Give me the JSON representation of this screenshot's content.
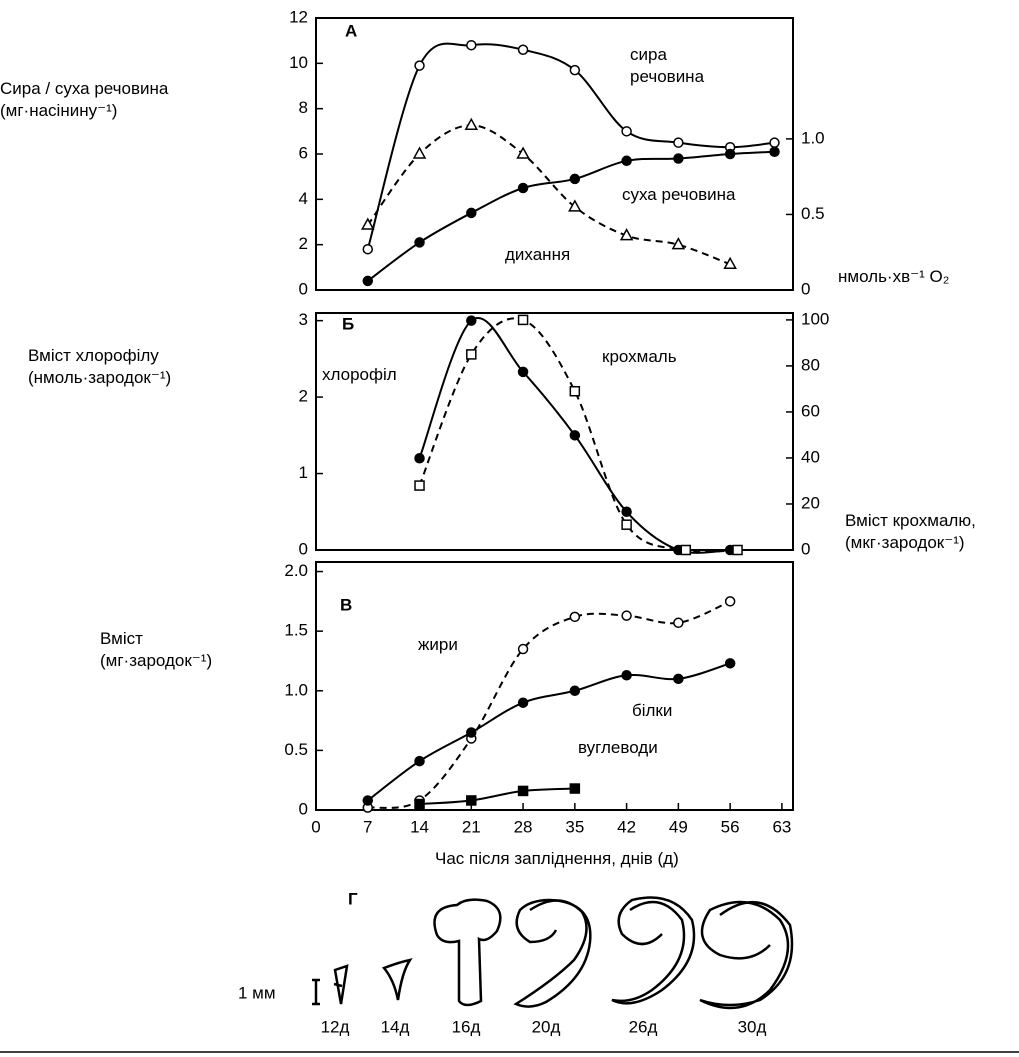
{
  "chart_data": [
    {
      "type": "line",
      "panel": "А",
      "xlim": [
        0,
        64.5
      ],
      "ylim": [
        0,
        12
      ],
      "yticks": [
        0,
        2,
        4,
        6,
        8,
        10,
        12
      ],
      "y2lim": [
        0,
        1.8
      ],
      "y2ticks": [
        0,
        {
          "value": 0.5,
          "label": "0.5"
        },
        {
          "value": 1,
          "label": "1.0"
        }
      ],
      "ylabel": [
        "Сира / суха речовина",
        "(мг·насінину⁻¹)"
      ],
      "y2label": [
        "нмоль·хв⁻¹ O₂"
      ],
      "series": [
        {
          "name": "сира речовина",
          "color": "#000",
          "marker": "open-circle",
          "line_style": "solid",
          "x": [
            7,
            14,
            21,
            28,
            35,
            42,
            49,
            56,
            62
          ],
          "values": [
            1.8,
            9.9,
            10.8,
            10.6,
            9.7,
            7.0,
            6.5,
            6.3,
            6.5
          ]
        },
        {
          "name": "суха речовина",
          "color": "#000",
          "marker": "filled-circle",
          "line_style": "solid",
          "x": [
            7,
            14,
            21,
            28,
            35,
            42,
            49,
            56,
            62
          ],
          "values": [
            0.4,
            2.1,
            3.4,
            4.5,
            4.9,
            5.7,
            5.8,
            6.0,
            6.1
          ]
        },
        {
          "name": "дихання",
          "color": "#000",
          "marker": "triangle",
          "line_style": "dashed",
          "axis": "y2",
          "x": [
            7,
            14,
            21,
            28,
            35,
            42,
            49,
            56
          ],
          "values": [
            0.43,
            0.9,
            1.09,
            0.9,
            0.55,
            0.36,
            0.3,
            0.17
          ]
        }
      ]
    },
    {
      "type": "line",
      "panel": "Б",
      "xlim": [
        0,
        64.5
      ],
      "ylim": [
        0,
        3.1
      ],
      "yticks": [
        0,
        1,
        2,
        3
      ],
      "y2lim": [
        0,
        103
      ],
      "y2ticks": [
        0,
        20,
        40,
        60,
        80,
        100
      ],
      "ylabel": [
        "Вміст хлорофілу",
        "(нмоль·зародок⁻¹)"
      ],
      "y2label": [
        "Вміст крохмалю,",
        "(мкг·зародок⁻¹)"
      ],
      "series": [
        {
          "name": "хлорофіл",
          "color": "#000",
          "marker": "filled-circle",
          "line_style": "solid",
          "x": [
            14,
            21,
            28,
            35,
            42,
            49,
            56
          ],
          "values": [
            1.2,
            3.0,
            2.33,
            1.5,
            0.5,
            0,
            0
          ]
        },
        {
          "name": "крохмаль",
          "color": "#000",
          "marker": "square",
          "line_style": "dashed",
          "axis": "y2",
          "x": [
            14,
            21,
            28,
            35,
            42,
            50,
            57
          ],
          "values": [
            28,
            85,
            100,
            69,
            11,
            0,
            0
          ]
        }
      ]
    },
    {
      "type": "line",
      "panel": "В",
      "xlim": [
        0,
        64.5
      ],
      "ylim": [
        0,
        2.08
      ],
      "yticks": [
        0,
        {
          "value": 0.5,
          "label": "0.5"
        },
        {
          "value": 1,
          "label": "1.0"
        },
        {
          "value": 1.5,
          "label": "1.5"
        },
        {
          "value": 2,
          "label": "2.0"
        }
      ],
      "xticks": [
        0,
        7,
        14,
        21,
        28,
        35,
        42,
        49,
        56,
        63
      ],
      "xlabel": "Час після запліднення, днів (д)",
      "ylabel": [
        "Вміст",
        "(мг·зародок⁻¹)"
      ],
      "series": [
        {
          "name": "жири",
          "color": "#000",
          "marker": "open-circle",
          "line_style": "dashed",
          "x": [
            7,
            14,
            21,
            28,
            35,
            42,
            49,
            56
          ],
          "values": [
            0.02,
            0.08,
            0.6,
            1.35,
            1.62,
            1.63,
            1.57,
            1.75
          ]
        },
        {
          "name": "білки",
          "color": "#000",
          "marker": "filled-circle",
          "line_style": "solid",
          "x": [
            7,
            14,
            21,
            28,
            35,
            42,
            49,
            56
          ],
          "values": [
            0.08,
            0.41,
            0.65,
            0.9,
            1.0,
            1.13,
            1.1,
            1.23
          ]
        },
        {
          "name": "вуглеводи",
          "color": "#000",
          "marker": "filled-square",
          "line_style": "solid",
          "x": [
            14,
            21,
            28,
            35
          ],
          "values": [
            0.05,
            0.08,
            0.16,
            0.18
          ]
        }
      ]
    }
  ],
  "embryos": {
    "letter": "Г",
    "scale": "1 мм",
    "stages": [
      "12д",
      "14д",
      "16д",
      "20д",
      "26д",
      "30д"
    ]
  }
}
